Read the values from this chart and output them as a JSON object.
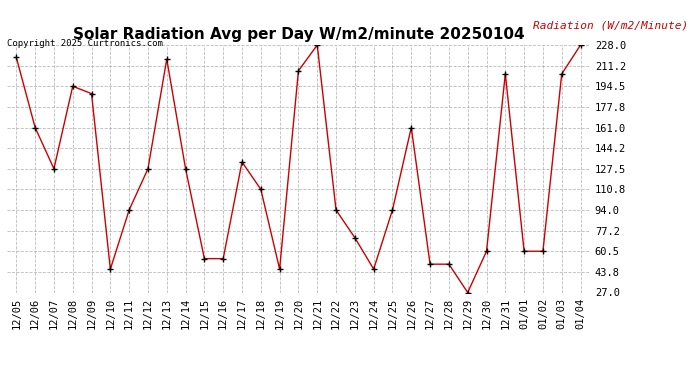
{
  "title": "Solar Radiation Avg per Day W/m2/minute 20250104",
  "copyright": "Copyright 2025 Curtronics.com",
  "ylabel": "Radiation (W/m2/Minute)",
  "dates": [
    "12/05",
    "12/06",
    "12/07",
    "12/08",
    "12/09",
    "12/10",
    "12/11",
    "12/12",
    "12/13",
    "12/14",
    "12/15",
    "12/16",
    "12/17",
    "12/18",
    "12/19",
    "12/20",
    "12/21",
    "12/22",
    "12/23",
    "12/24",
    "12/25",
    "12/26",
    "12/27",
    "12/28",
    "12/29",
    "12/30",
    "12/31",
    "01/01",
    "01/02",
    "01/03",
    "01/04"
  ],
  "values": [
    218.0,
    161.0,
    127.5,
    194.5,
    188.5,
    46.0,
    94.0,
    127.5,
    216.5,
    127.5,
    54.5,
    54.5,
    133.0,
    110.8,
    46.0,
    207.0,
    228.0,
    94.0,
    71.5,
    46.0,
    94.0,
    161.0,
    50.0,
    50.0,
    27.0,
    60.5,
    204.5,
    60.5,
    60.5,
    204.5,
    228.0
  ],
  "line_color": "#cc0000",
  "marker_color": "#000000",
  "background_color": "#ffffff",
  "grid_color": "#aaaaaa",
  "title_fontsize": 11,
  "label_fontsize": 8,
  "tick_fontsize": 7.5,
  "ylabel_color": "#cc0000",
  "copyright_color": "#000000",
  "ylim": [
    27.0,
    228.0
  ],
  "yticks": [
    27.0,
    43.8,
    60.5,
    77.2,
    94.0,
    110.8,
    127.5,
    144.2,
    161.0,
    177.8,
    194.5,
    211.2,
    228.0
  ]
}
